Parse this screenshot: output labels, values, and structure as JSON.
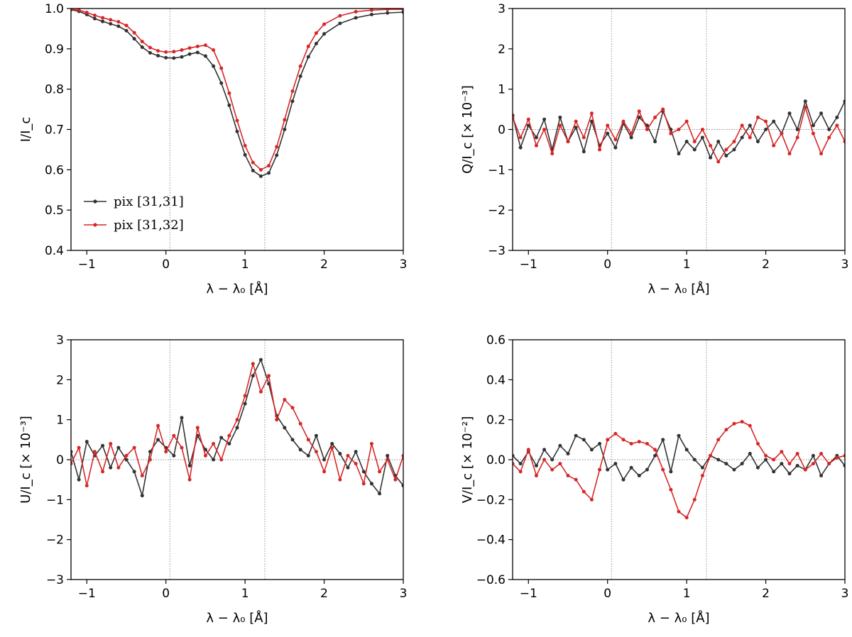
{
  "colors": {
    "series_a": "#333333",
    "series_b": "#d62728",
    "axis": "#000000",
    "refline": "#888888"
  },
  "legend": {
    "entries": [
      "pix [31,31]",
      "pix [31,32]"
    ],
    "placement": "lower-left of top-left panel"
  },
  "chart_data": [
    {
      "type": "line",
      "panel": "top-left",
      "title": "",
      "xlabel": "λ − λ₀ [Å]",
      "ylabel": "I/I_c",
      "xlim": [
        -1.2,
        3.0
      ],
      "ylim": [
        0.4,
        1.0
      ],
      "xticks": [
        -1,
        0,
        1,
        2,
        3
      ],
      "xtick_labels": [
        "−1",
        "0",
        "1",
        "2",
        "3"
      ],
      "yticks": [
        0.4,
        0.5,
        0.6,
        0.7,
        0.8,
        0.9,
        1.0
      ],
      "ytick_labels": [
        "0.4",
        "0.5",
        "0.6",
        "0.7",
        "0.8",
        "0.9",
        "1.0"
      ],
      "ref_vlines": [
        0.05,
        1.25
      ],
      "ref_hline": null,
      "x": [
        -1.2,
        -1.1,
        -1.0,
        -0.9,
        -0.8,
        -0.7,
        -0.6,
        -0.5,
        -0.4,
        -0.3,
        -0.2,
        -0.1,
        0.0,
        0.1,
        0.2,
        0.3,
        0.4,
        0.5,
        0.6,
        0.7,
        0.8,
        0.9,
        1.0,
        1.1,
        1.2,
        1.3,
        1.4,
        1.5,
        1.6,
        1.7,
        1.8,
        1.9,
        2.0,
        2.2,
        2.4,
        2.6,
        2.8,
        3.0
      ],
      "series": [
        {
          "name": "pix [31,31]",
          "values": [
            0.997,
            0.993,
            0.985,
            0.975,
            0.968,
            0.962,
            0.956,
            0.945,
            0.925,
            0.904,
            0.89,
            0.883,
            0.878,
            0.877,
            0.88,
            0.887,
            0.891,
            0.882,
            0.857,
            0.815,
            0.76,
            0.695,
            0.637,
            0.598,
            0.584,
            0.592,
            0.636,
            0.7,
            0.77,
            0.832,
            0.88,
            0.913,
            0.937,
            0.963,
            0.977,
            0.985,
            0.989,
            0.991
          ]
        },
        {
          "name": "pix [31,32]",
          "values": [
            0.998,
            0.996,
            0.99,
            0.983,
            0.977,
            0.972,
            0.967,
            0.958,
            0.94,
            0.918,
            0.903,
            0.895,
            0.892,
            0.893,
            0.897,
            0.902,
            0.906,
            0.909,
            0.897,
            0.852,
            0.79,
            0.722,
            0.66,
            0.618,
            0.6,
            0.61,
            0.657,
            0.724,
            0.795,
            0.857,
            0.906,
            0.939,
            0.961,
            0.982,
            0.992,
            0.996,
            0.998,
            0.998
          ]
        }
      ]
    },
    {
      "type": "line",
      "panel": "top-right",
      "title": "",
      "xlabel": "λ − λ₀ [Å]",
      "ylabel": "Q/I_c [× 10⁻³]",
      "xlim": [
        -1.2,
        3.0
      ],
      "ylim": [
        -3,
        3
      ],
      "xticks": [
        -1,
        0,
        1,
        2,
        3
      ],
      "xtick_labels": [
        "−1",
        "0",
        "1",
        "2",
        "3"
      ],
      "yticks": [
        -3,
        -2,
        -1,
        0,
        1,
        2,
        3
      ],
      "ytick_labels": [
        "−3",
        "−2",
        "−1",
        "0",
        "1",
        "2",
        "3"
      ],
      "ref_vlines": [
        0.05,
        1.25
      ],
      "ref_hline": 0,
      "x": [
        -1.2,
        -1.1,
        -1.0,
        -0.9,
        -0.8,
        -0.7,
        -0.6,
        -0.5,
        -0.4,
        -0.3,
        -0.2,
        -0.1,
        0.0,
        0.1,
        0.2,
        0.3,
        0.4,
        0.5,
        0.6,
        0.7,
        0.8,
        0.9,
        1.0,
        1.1,
        1.2,
        1.3,
        1.4,
        1.5,
        1.6,
        1.7,
        1.8,
        1.9,
        2.0,
        2.1,
        2.2,
        2.3,
        2.4,
        2.5,
        2.6,
        2.7,
        2.8,
        2.9,
        3.0
      ],
      "series": [
        {
          "name": "pix [31,31]",
          "values": [
            0.35,
            -0.45,
            0.1,
            -0.2,
            0.25,
            -0.5,
            0.3,
            -0.3,
            0.05,
            -0.55,
            0.2,
            -0.4,
            -0.1,
            -0.45,
            0.15,
            -0.2,
            0.3,
            0.1,
            -0.3,
            0.45,
            0.0,
            -0.6,
            -0.3,
            -0.5,
            -0.2,
            -0.7,
            -0.3,
            -0.65,
            -0.5,
            -0.2,
            0.1,
            -0.3,
            0.0,
            0.2,
            -0.1,
            0.4,
            0.0,
            0.7,
            0.1,
            0.4,
            0.0,
            0.3,
            0.7
          ]
        },
        {
          "name": "pix [31,32]",
          "values": [
            0.3,
            -0.2,
            0.25,
            -0.4,
            0.0,
            -0.6,
            0.1,
            -0.3,
            0.2,
            -0.2,
            0.4,
            -0.5,
            0.1,
            -0.25,
            0.2,
            -0.1,
            0.45,
            0.0,
            0.3,
            0.5,
            -0.1,
            0.0,
            0.2,
            -0.3,
            0.0,
            -0.4,
            -0.8,
            -0.5,
            -0.3,
            0.1,
            -0.2,
            0.3,
            0.2,
            -0.4,
            -0.1,
            -0.6,
            -0.2,
            0.55,
            -0.1,
            -0.6,
            -0.2,
            0.1,
            -0.3
          ]
        }
      ]
    },
    {
      "type": "line",
      "panel": "bottom-left",
      "title": "",
      "xlabel": "λ − λ₀ [Å]",
      "ylabel": "U/I_c [× 10⁻³]",
      "xlim": [
        -1.2,
        3.0
      ],
      "ylim": [
        -3,
        3
      ],
      "xticks": [
        -1,
        0,
        1,
        2,
        3
      ],
      "xtick_labels": [
        "−1",
        "0",
        "1",
        "2",
        "3"
      ],
      "yticks": [
        -3,
        -2,
        -1,
        0,
        1,
        2,
        3
      ],
      "ytick_labels": [
        "−3",
        "−2",
        "−1",
        "0",
        "1",
        "2",
        "3"
      ],
      "ref_vlines": [
        0.05,
        1.25
      ],
      "ref_hline": 0,
      "x": [
        -1.2,
        -1.1,
        -1.0,
        -0.9,
        -0.8,
        -0.7,
        -0.6,
        -0.5,
        -0.4,
        -0.3,
        -0.2,
        -0.1,
        0.0,
        0.1,
        0.2,
        0.3,
        0.4,
        0.5,
        0.6,
        0.7,
        0.8,
        0.9,
        1.0,
        1.1,
        1.2,
        1.3,
        1.4,
        1.5,
        1.6,
        1.7,
        1.8,
        1.9,
        2.0,
        2.1,
        2.2,
        2.3,
        2.4,
        2.5,
        2.6,
        2.7,
        2.8,
        2.9,
        3.0
      ],
      "series": [
        {
          "name": "pix [31,31]",
          "values": [
            0.2,
            -0.5,
            0.45,
            0.1,
            0.35,
            -0.2,
            0.3,
            0.0,
            -0.3,
            -0.9,
            0.2,
            0.5,
            0.3,
            0.1,
            1.05,
            -0.15,
            0.6,
            0.25,
            0.0,
            0.55,
            0.4,
            0.8,
            1.4,
            2.1,
            2.5,
            1.9,
            1.1,
            0.8,
            0.5,
            0.25,
            0.1,
            0.6,
            0.0,
            0.4,
            0.15,
            -0.2,
            0.2,
            -0.3,
            -0.6,
            -0.85,
            0.1,
            -0.4,
            -0.65
          ]
        },
        {
          "name": "pix [31,32]",
          "values": [
            -0.1,
            0.3,
            -0.65,
            0.2,
            -0.3,
            0.4,
            -0.2,
            0.1,
            0.3,
            -0.4,
            0.0,
            0.85,
            0.2,
            0.6,
            0.3,
            -0.5,
            0.8,
            0.1,
            0.4,
            0.0,
            0.6,
            1.0,
            1.6,
            2.4,
            1.7,
            2.1,
            1.0,
            1.5,
            1.3,
            0.9,
            0.5,
            0.2,
            -0.3,
            0.3,
            -0.5,
            0.1,
            -0.1,
            -0.6,
            0.4,
            -0.3,
            0.0,
            -0.5,
            0.1
          ]
        }
      ]
    },
    {
      "type": "line",
      "panel": "bottom-right",
      "title": "",
      "xlabel": "λ − λ₀ [Å]",
      "ylabel": "V/I_c [× 10⁻²]",
      "xlim": [
        -1.2,
        3.0
      ],
      "ylim": [
        -0.6,
        0.6
      ],
      "xticks": [
        -1,
        0,
        1,
        2,
        3
      ],
      "xtick_labels": [
        "−1",
        "0",
        "1",
        "2",
        "3"
      ],
      "yticks": [
        -0.6,
        -0.4,
        -0.2,
        0.0,
        0.2,
        0.4,
        0.6
      ],
      "ytick_labels": [
        "−0.6",
        "−0.4",
        "−0.2",
        "0.0",
        "0.2",
        "0.4",
        "0.6"
      ],
      "ref_vlines": [
        0.05,
        1.25
      ],
      "ref_hline": 0,
      "x": [
        -1.2,
        -1.1,
        -1.0,
        -0.9,
        -0.8,
        -0.7,
        -0.6,
        -0.5,
        -0.4,
        -0.3,
        -0.2,
        -0.1,
        0.0,
        0.1,
        0.2,
        0.3,
        0.4,
        0.5,
        0.6,
        0.7,
        0.8,
        0.9,
        1.0,
        1.1,
        1.2,
        1.3,
        1.4,
        1.5,
        1.6,
        1.7,
        1.8,
        1.9,
        2.0,
        2.1,
        2.2,
        2.3,
        2.4,
        2.5,
        2.6,
        2.7,
        2.8,
        2.9,
        3.0
      ],
      "series": [
        {
          "name": "pix [31,31]",
          "values": [
            0.02,
            -0.02,
            0.04,
            -0.03,
            0.05,
            0.0,
            0.07,
            0.03,
            0.12,
            0.1,
            0.05,
            0.08,
            -0.05,
            -0.02,
            -0.1,
            -0.04,
            -0.08,
            -0.05,
            0.02,
            0.1,
            -0.06,
            0.12,
            0.05,
            0.0,
            -0.04,
            0.02,
            0.0,
            -0.02,
            -0.05,
            -0.02,
            0.03,
            -0.04,
            0.0,
            -0.06,
            -0.02,
            -0.07,
            -0.03,
            -0.05,
            0.02,
            -0.08,
            -0.02,
            0.02,
            -0.03
          ]
        },
        {
          "name": "pix [31,32]",
          "values": [
            -0.02,
            -0.06,
            0.05,
            -0.08,
            0.0,
            -0.05,
            -0.02,
            -0.08,
            -0.1,
            -0.16,
            -0.2,
            -0.05,
            0.1,
            0.13,
            0.1,
            0.08,
            0.09,
            0.08,
            0.05,
            -0.05,
            -0.15,
            -0.26,
            -0.29,
            -0.2,
            -0.08,
            0.02,
            0.1,
            0.15,
            0.18,
            0.19,
            0.17,
            0.08,
            0.02,
            0.0,
            0.04,
            -0.02,
            0.03,
            -0.05,
            -0.02,
            0.03,
            -0.02,
            0.01,
            0.02
          ]
        }
      ]
    }
  ]
}
